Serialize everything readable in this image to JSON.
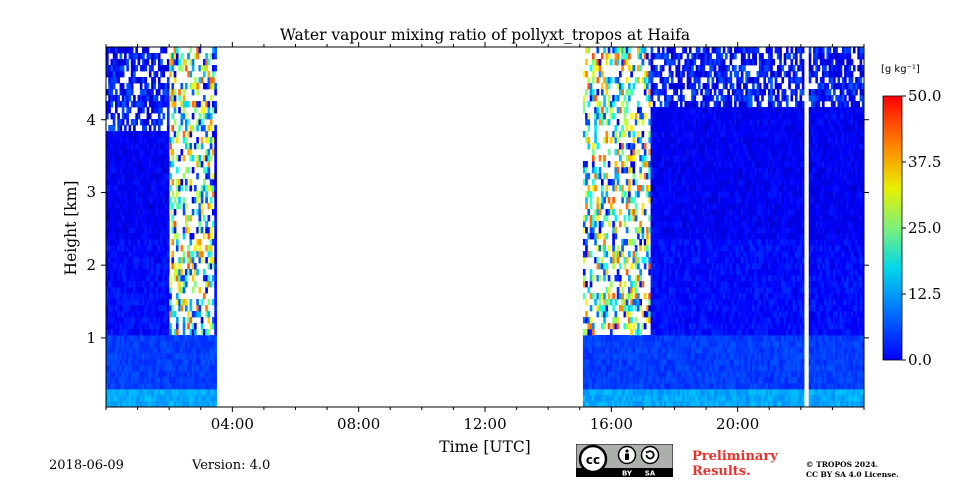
{
  "chart_data": {
    "type": "heatmap",
    "title": "Water vapour mixing ratio of pollyxt_tropos at Haifa",
    "xlabel": "Time [UTC]",
    "ylabel": "Height [km]",
    "x_unit": "hours UTC",
    "xlim": [
      0,
      24
    ],
    "ylim": [
      0.05,
      5.0
    ],
    "x_ticks": [
      {
        "value": 4,
        "label": "04:00"
      },
      {
        "value": 8,
        "label": "08:00"
      },
      {
        "value": 12,
        "label": "12:00"
      },
      {
        "value": 16,
        "label": "16:00"
      },
      {
        "value": 20,
        "label": "20:00"
      }
    ],
    "y_ticks": [
      {
        "value": 1,
        "label": "1"
      },
      {
        "value": 2,
        "label": "2"
      },
      {
        "value": 3,
        "label": "3"
      },
      {
        "value": 4,
        "label": "4"
      }
    ],
    "colorbar": {
      "label": "[g kg⁻¹]",
      "range": [
        0.0,
        50.0
      ],
      "ticks": [
        "0.0",
        "12.5",
        "25.0",
        "37.5",
        "50.0"
      ],
      "colormap": "jet"
    },
    "data_periods": [
      {
        "start": 0.0,
        "end": 3.5,
        "noisy_from_height": 3.8,
        "noise_edge_start": 2.0,
        "noise_edge_end": 3.4
      },
      {
        "start": 15.1,
        "end": 22.1,
        "noisy_from_height": 4.1,
        "noise_edge_start": 15.1,
        "noise_edge_end": 17.2
      },
      {
        "start": 22.25,
        "end": 24.0,
        "noisy_from_height": 4.1
      }
    ],
    "typical_values": {
      "near_surface_g_per_kg": 13,
      "boundary_layer_g_per_kg": 8,
      "free_troposphere_g_per_kg": 4
    }
  },
  "footer": {
    "date": "2018-06-09",
    "version": "Version: 4.0",
    "license_badge": {
      "icon": "cc-by-sa-icon",
      "by": "BY",
      "sa": "SA"
    },
    "preliminary_line1": "Preliminary",
    "preliminary_line2": "Results.",
    "copyright_line1": "© TROPOS 2024.",
    "copyright_line2": "CC BY SA 4.0 License.",
    "colors": {
      "preliminary": "#e8302c"
    }
  }
}
